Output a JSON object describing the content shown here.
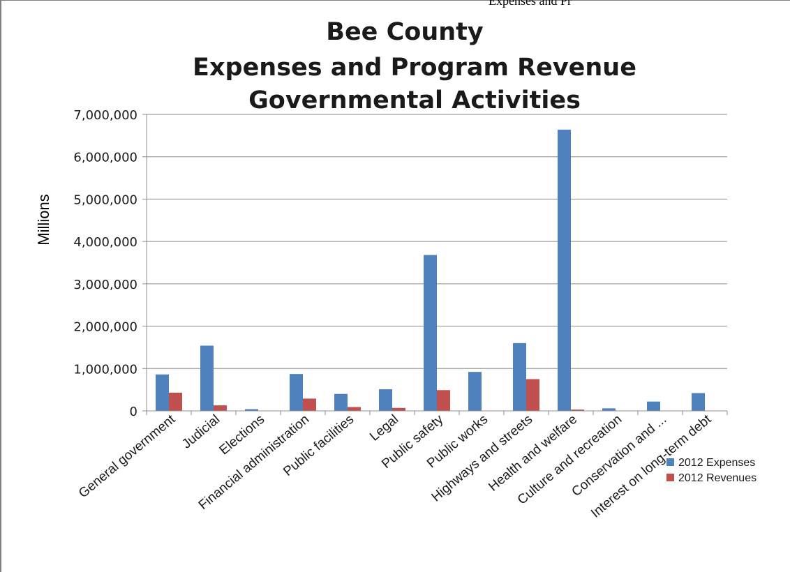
{
  "page_header_fragment": "Expenses and Pr",
  "chart_data": {
    "type": "bar",
    "title_lines": [
      "Bee County",
      "Expenses and Program Revenue",
      "Governmental Activities"
    ],
    "ylabel": "Millions",
    "ylim": [
      0,
      7000000
    ],
    "yticks": [
      0,
      1000000,
      2000000,
      3000000,
      4000000,
      5000000,
      6000000,
      7000000
    ],
    "ytick_labels": [
      "0",
      "1,000,000",
      "2,000,000",
      "3,000,000",
      "4,000,000",
      "5,000,000",
      "6,000,000",
      "7,000,000"
    ],
    "grid": true,
    "legend_position": "bottom-right",
    "categories": [
      "General government",
      "Judicial",
      "Elections",
      "Financial administration",
      "Public facilities",
      "Legal",
      "Public safety",
      "Public works",
      "Highways and streets",
      "Health and welfare",
      "Culture and recreation",
      "Conservation and ...",
      "Interest on long-term debt"
    ],
    "series": [
      {
        "name": "2012 Expenses",
        "color": "#4f81bd",
        "values": [
          860000,
          1540000,
          40000,
          870000,
          400000,
          510000,
          3680000,
          920000,
          1600000,
          6640000,
          60000,
          220000,
          420000
        ]
      },
      {
        "name": "2012 Revenues",
        "color": "#c0504d",
        "values": [
          430000,
          130000,
          0,
          290000,
          90000,
          70000,
          490000,
          0,
          750000,
          30000,
          0,
          0,
          0
        ]
      }
    ]
  }
}
